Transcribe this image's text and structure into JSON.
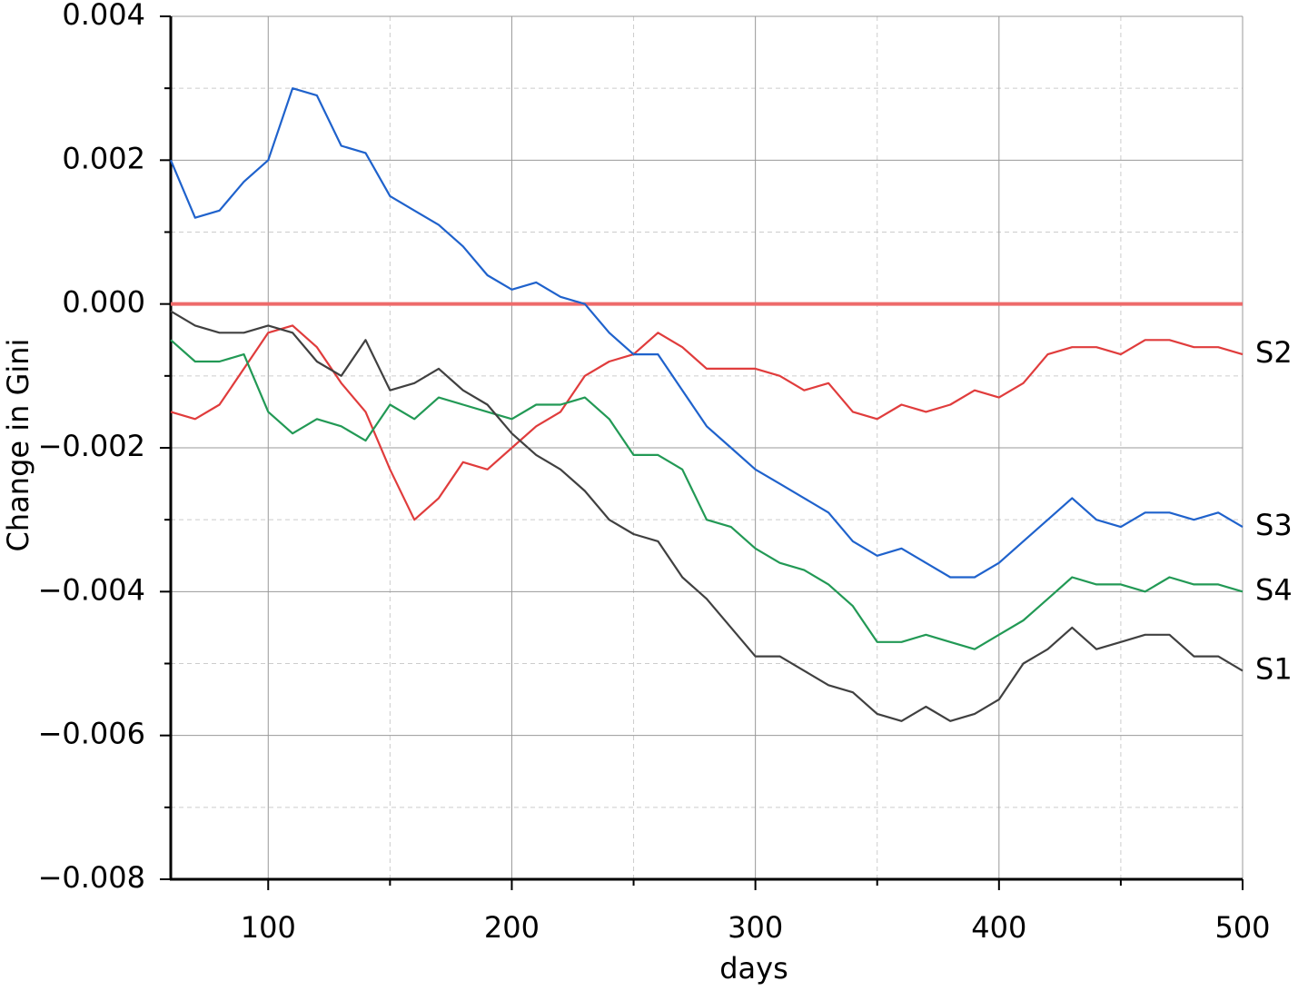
{
  "chart_data": {
    "type": "line",
    "x_label": "days",
    "y_label": "Change in Gini",
    "xlim": [
      60,
      500
    ],
    "xticks": [
      100,
      200,
      300,
      400,
      500
    ],
    "minor_xticks": [
      150,
      250,
      350,
      450
    ],
    "ylim": [
      -0.008,
      0.004
    ],
    "yticks": [
      {
        "value": -0.008,
        "label": "−0.008"
      },
      {
        "value": -0.006,
        "label": "−0.006"
      },
      {
        "value": -0.004,
        "label": "−0.004"
      },
      {
        "value": -0.002,
        "label": "−0.002"
      },
      {
        "value": 0,
        "label": "0.000"
      },
      {
        "value": 0.002,
        "label": "0.002"
      },
      {
        "value": 0.004,
        "label": "0.004"
      }
    ],
    "minor_yticks": [
      -0.007,
      -0.005,
      -0.003,
      -0.001,
      0.001,
      0.003
    ],
    "grid": true,
    "reference_line": {
      "value": 0,
      "color": "#ee6b6b"
    },
    "x": [
      60,
      70,
      80,
      90,
      100,
      110,
      120,
      130,
      140,
      150,
      160,
      170,
      180,
      190,
      200,
      210,
      220,
      230,
      240,
      250,
      260,
      270,
      280,
      290,
      300,
      310,
      320,
      330,
      340,
      350,
      360,
      370,
      380,
      390,
      400,
      410,
      420,
      430,
      440,
      450,
      460,
      470,
      480,
      490,
      500
    ],
    "series": [
      {
        "name": "S2",
        "color": "#e03c3c",
        "values": [
          -0.0015,
          -0.0016,
          -0.0014,
          -0.0009,
          -0.0004,
          -0.0003,
          -0.0006,
          -0.0011,
          -0.0015,
          -0.0023,
          -0.003,
          -0.0027,
          -0.0022,
          -0.0023,
          -0.002,
          -0.0017,
          -0.0015,
          -0.001,
          -0.0008,
          -0.0007,
          -0.0004,
          -0.0006,
          -0.0009,
          -0.0009,
          -0.0009,
          -0.001,
          -0.0012,
          -0.0011,
          -0.0015,
          -0.0016,
          -0.0014,
          -0.0015,
          -0.0014,
          -0.0012,
          -0.0013,
          -0.0011,
          -0.0007,
          -0.0006,
          -0.0006,
          -0.0007,
          -0.0005,
          -0.0005,
          -0.0006,
          -0.0006,
          -0.0007
        ]
      },
      {
        "name": "S3",
        "color": "#1f62cc",
        "values": [
          0.002,
          0.0012,
          0.0013,
          0.0017,
          0.002,
          0.003,
          0.0029,
          0.0022,
          0.0021,
          0.0015,
          0.0013,
          0.0011,
          0.0008,
          0.0004,
          0.0002,
          0.0003,
          0.0001,
          0,
          -0.0004,
          -0.0007,
          -0.0007,
          -0.0012,
          -0.0017,
          -0.002,
          -0.0023,
          -0.0025,
          -0.0027,
          -0.0029,
          -0.0033,
          -0.0035,
          -0.0034,
          -0.0036,
          -0.0038,
          -0.0038,
          -0.0036,
          -0.0033,
          -0.003,
          -0.0027,
          -0.003,
          -0.0031,
          -0.0029,
          -0.0029,
          -0.003,
          -0.0029,
          -0.0031
        ]
      },
      {
        "name": "S4",
        "color": "#229955",
        "values": [
          -0.0005,
          -0.0008,
          -0.0008,
          -0.0007,
          -0.0015,
          -0.0018,
          -0.0016,
          -0.0017,
          -0.0019,
          -0.0014,
          -0.0016,
          -0.0013,
          -0.0014,
          -0.0015,
          -0.0016,
          -0.0014,
          -0.0014,
          -0.0013,
          -0.0016,
          -0.0021,
          -0.0021,
          -0.0023,
          -0.003,
          -0.0031,
          -0.0034,
          -0.0036,
          -0.0037,
          -0.0039,
          -0.0042,
          -0.0047,
          -0.0047,
          -0.0046,
          -0.0047,
          -0.0048,
          -0.0046,
          -0.0044,
          -0.0041,
          -0.0038,
          -0.0039,
          -0.0039,
          -0.004,
          -0.0038,
          -0.0039,
          -0.0039,
          -0.004
        ]
      },
      {
        "name": "S1",
        "color": "#404040",
        "values": [
          -0.0001,
          -0.0003,
          -0.0004,
          -0.0004,
          -0.0003,
          -0.0004,
          -0.0008,
          -0.001,
          -0.0005,
          -0.0012,
          -0.0011,
          -0.0009,
          -0.0012,
          -0.0014,
          -0.0018,
          -0.0021,
          -0.0023,
          -0.0026,
          -0.003,
          -0.0032,
          -0.0033,
          -0.0038,
          -0.0041,
          -0.0045,
          -0.0049,
          -0.0049,
          -0.0051,
          -0.0053,
          -0.0054,
          -0.0057,
          -0.0058,
          -0.0056,
          -0.0058,
          -0.0057,
          -0.0055,
          -0.005,
          -0.0048,
          -0.0045,
          -0.0048,
          -0.0047,
          -0.0046,
          -0.0046,
          -0.0049,
          -0.0049,
          -0.0051
        ]
      }
    ]
  }
}
